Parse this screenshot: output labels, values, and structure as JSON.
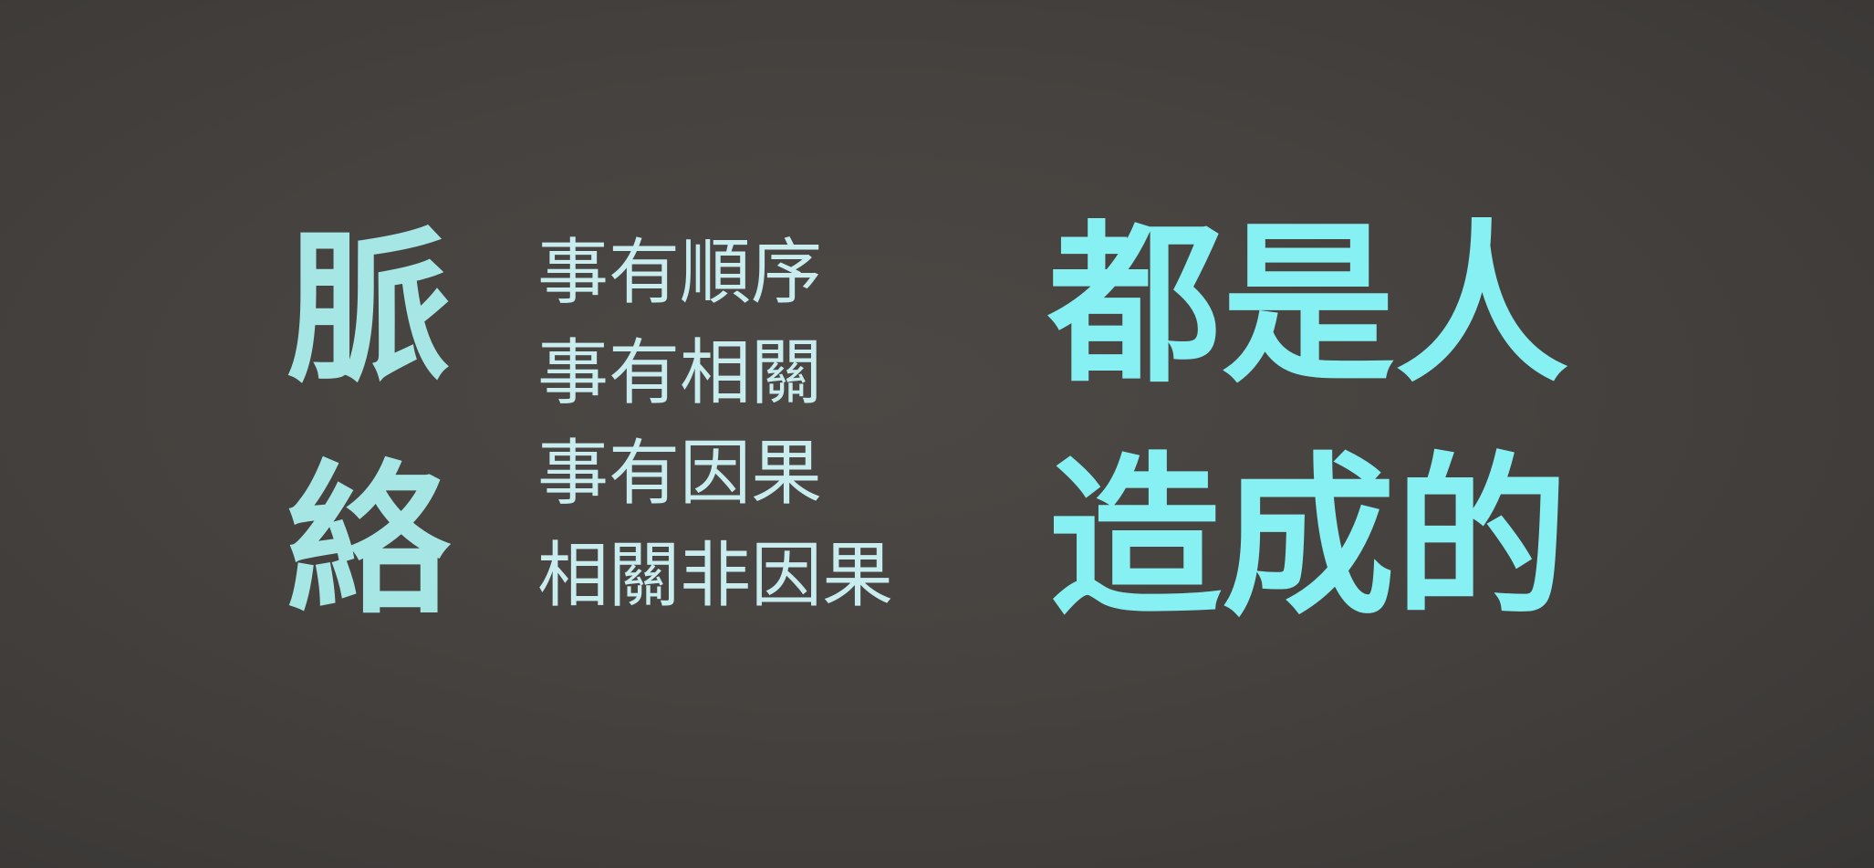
{
  "slide": {
    "left_title": [
      "脈",
      "絡"
    ],
    "lines": [
      "事有順序",
      "事有相關",
      "事有因果",
      "相關非因果"
    ],
    "right_text": [
      "都是人",
      "造成的"
    ]
  }
}
